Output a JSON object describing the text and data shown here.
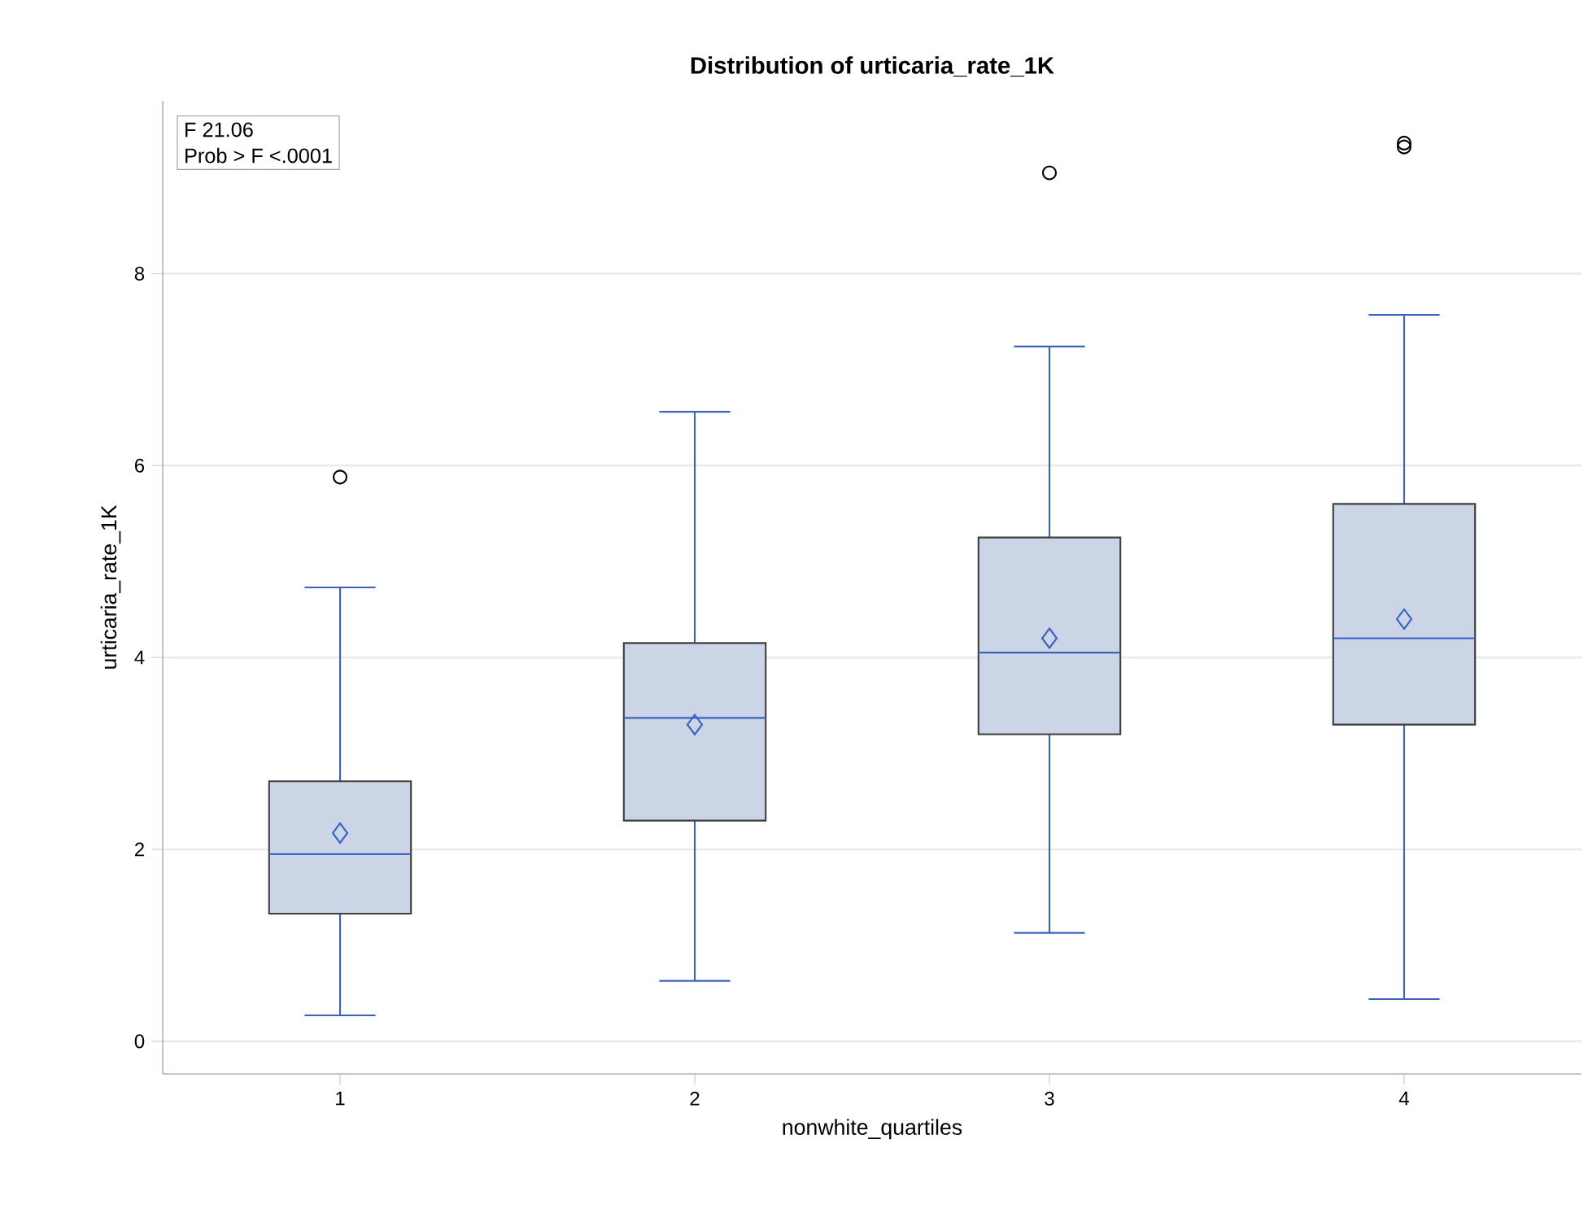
{
  "chart_data": {
    "type": "box",
    "title": "Distribution of urticaria_rate_1K",
    "xlabel": "nonwhite_quartiles",
    "ylabel": "urticaria_rate_1K",
    "categories": [
      "1",
      "2",
      "3",
      "4"
    ],
    "series": [
      {
        "color": "#cbd5e5",
        "boxes": [
          {
            "low": 0.27,
            "q1": 1.33,
            "median": 1.95,
            "q3": 2.71,
            "high": 4.73,
            "mean": 2.17,
            "outliers": [
              5.88
            ]
          },
          {
            "low": 0.63,
            "q1": 2.3,
            "median": 3.37,
            "q3": 4.15,
            "high": 6.56,
            "mean": 3.3
          },
          {
            "low": 1.13,
            "q1": 3.2,
            "median": 4.05,
            "q3": 5.25,
            "high": 7.24,
            "mean": 4.2,
            "outliers": [
              9.05
            ]
          },
          {
            "low": 0.44,
            "q1": 3.3,
            "median": 4.2,
            "q3": 5.6,
            "high": 7.57,
            "mean": 4.4,
            "outliers": [
              9.32,
              9.36
            ]
          }
        ]
      }
    ],
    "ylim": [
      -0.34,
      9.8
    ],
    "yticks": [
      0,
      2,
      4,
      6,
      8
    ],
    "grid": "y",
    "annotations": [
      "F 21.06",
      "Prob > F <.0001"
    ]
  }
}
